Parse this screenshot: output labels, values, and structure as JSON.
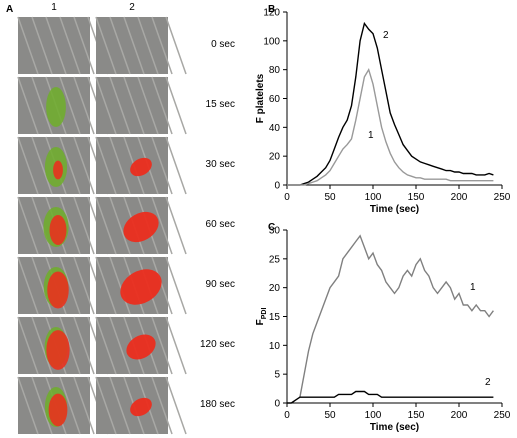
{
  "panel_a": {
    "label": "A",
    "columns": [
      "1",
      "2"
    ],
    "rows": [
      "0 sec",
      "15 sec",
      "30 sec",
      "60 sec",
      "90 sec",
      "120 sec",
      "180 sec"
    ]
  },
  "chart_data": [
    {
      "type": "line",
      "panel": "B",
      "ylabel": "F platelets",
      "xlabel": "Time (sec)",
      "x": [
        0,
        5,
        10,
        15,
        20,
        25,
        30,
        35,
        40,
        45,
        50,
        55,
        60,
        65,
        70,
        75,
        80,
        85,
        90,
        95,
        100,
        105,
        110,
        115,
        120,
        125,
        130,
        135,
        140,
        145,
        150,
        155,
        160,
        165,
        170,
        175,
        180,
        185,
        190,
        195,
        200,
        205,
        210,
        215,
        220,
        225,
        230,
        235,
        240
      ],
      "series": [
        {
          "name": "2",
          "color": "#000000",
          "values": [
            0,
            0,
            0,
            0,
            1,
            2,
            4,
            6,
            9,
            12,
            17,
            25,
            33,
            40,
            45,
            55,
            75,
            100,
            112,
            108,
            105,
            95,
            80,
            65,
            50,
            42,
            35,
            28,
            24,
            20,
            18,
            16,
            15,
            14,
            13,
            12,
            11,
            10,
            10,
            9,
            9,
            8,
            8,
            8,
            7,
            7,
            7,
            8,
            7
          ]
        },
        {
          "name": "1",
          "color": "#999999",
          "values": [
            0,
            0,
            0,
            0,
            0,
            1,
            2,
            3,
            5,
            7,
            10,
            15,
            20,
            25,
            28,
            32,
            45,
            60,
            75,
            80,
            70,
            55,
            40,
            30,
            22,
            16,
            12,
            9,
            7,
            6,
            5,
            5,
            4,
            4,
            4,
            4,
            4,
            4,
            3,
            3,
            3,
            3,
            3,
            3,
            3,
            3,
            3,
            3,
            3
          ]
        }
      ],
      "xlim": [
        0,
        250
      ],
      "xticks": [
        0,
        50,
        100,
        150,
        200,
        250
      ],
      "ylim": [
        0,
        120
      ],
      "yticks": [
        0,
        20,
        40,
        60,
        80,
        100,
        120
      ]
    },
    {
      "type": "line",
      "panel": "C",
      "ylabel": "F",
      "ylabel_sub": "PDI",
      "xlabel": "Time (sec)",
      "x": [
        0,
        5,
        10,
        15,
        20,
        25,
        30,
        35,
        40,
        45,
        50,
        55,
        60,
        65,
        70,
        75,
        80,
        85,
        90,
        95,
        100,
        105,
        110,
        115,
        120,
        125,
        130,
        135,
        140,
        145,
        150,
        155,
        160,
        165,
        170,
        175,
        180,
        185,
        190,
        195,
        200,
        205,
        210,
        215,
        220,
        225,
        230,
        235,
        240
      ],
      "series": [
        {
          "name": "1",
          "color": "#808080",
          "values": [
            null,
            null,
            null,
            1,
            5,
            9,
            12,
            14,
            16,
            18,
            20,
            21,
            22,
            25,
            26,
            27,
            28,
            29,
            27,
            25,
            26,
            24,
            23,
            21,
            20,
            19,
            20,
            22,
            23,
            22,
            24,
            25,
            23,
            22,
            20,
            19,
            20,
            21,
            20,
            18,
            19,
            17,
            17,
            16,
            17,
            16,
            16,
            15,
            16
          ]
        },
        {
          "name": "2",
          "color": "#000000",
          "values": [
            0,
            0,
            0.5,
            1,
            1,
            1,
            1,
            1,
            1,
            1,
            1,
            1,
            1.5,
            1.5,
            1.5,
            1.5,
            2,
            2,
            2,
            1.5,
            1.5,
            1.5,
            1,
            1,
            1,
            1,
            1,
            1,
            1,
            1,
            1,
            1,
            1,
            1,
            1,
            1,
            1,
            1,
            1,
            1,
            1,
            1,
            1,
            1,
            1,
            1,
            1,
            1,
            1
          ]
        }
      ],
      "xlim": [
        0,
        250
      ],
      "xticks": [
        0,
        50,
        100,
        150,
        200,
        250
      ],
      "ylim": [
        0,
        30
      ],
      "yticks": [
        0,
        5,
        10,
        15,
        20,
        25,
        30
      ]
    }
  ]
}
